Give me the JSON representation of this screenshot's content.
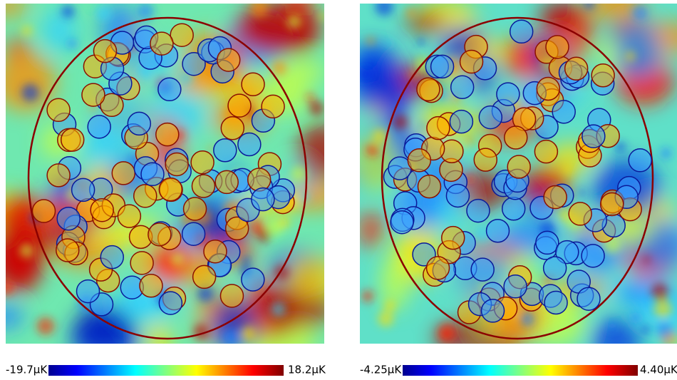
{
  "panels": [
    {
      "colorbar": {
        "min_label": "-19.7μK",
        "max_label": "18.2μK"
      }
    },
    {
      "colorbar": {
        "min_label": "-4.25μK",
        "max_label": "4.40μK"
      }
    }
  ]
}
